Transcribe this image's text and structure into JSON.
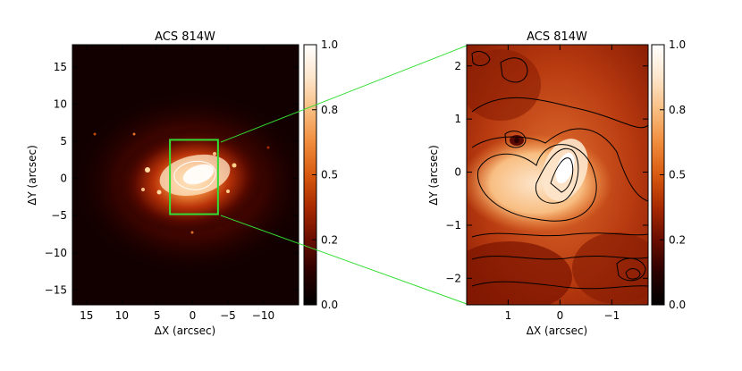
{
  "chart_data": [
    {
      "type": "heatmap",
      "title": "ACS 814W",
      "xlabel": "ΔX (arcsec)",
      "ylabel": "ΔY (arcsec)",
      "xlim": [
        17,
        -15
      ],
      "ylim": [
        -17,
        18
      ],
      "x_ticks": [
        15,
        10,
        5,
        0,
        -5,
        -10
      ],
      "x_tick_labels": [
        "15",
        "10",
        "5",
        "0",
        "−5",
        "−10"
      ],
      "y_ticks": [
        -15,
        -10,
        -5,
        0,
        5,
        10,
        15
      ],
      "y_tick_labels": [
        "−15",
        "−10",
        "−5",
        "0",
        "5",
        "10",
        "15"
      ],
      "colorbar": {
        "range": [
          0.0,
          1.0
        ],
        "ticks": [
          0.0,
          0.25,
          0.5,
          0.75,
          1.0
        ],
        "tick_labels": [
          "0.0",
          "0.2",
          "0.5",
          "0.8",
          "1.0"
        ]
      },
      "zoom_box": {
        "x": [
          3.2,
          -3.6
        ],
        "y": [
          -4.8,
          5.2
        ]
      },
      "zoom_box_color": "#33dd33",
      "contours": "white emission core near center"
    },
    {
      "type": "heatmap",
      "title": "ACS 814W",
      "xlabel": "ΔX (arcsec)",
      "ylabel": "ΔY (arcsec)",
      "xlim": [
        1.8,
        -1.7
      ],
      "ylim": [
        -2.5,
        2.4
      ],
      "x_ticks": [
        1,
        0,
        -1
      ],
      "x_tick_labels": [
        "1",
        "0",
        "−1"
      ],
      "y_ticks": [
        -2,
        -1,
        0,
        1,
        2
      ],
      "y_tick_labels": [
        "−2",
        "−1",
        "0",
        "1",
        "2"
      ],
      "colorbar": {
        "range": [
          0.0,
          1.0
        ],
        "ticks": [
          0.0,
          0.25,
          0.5,
          0.75,
          1.0
        ],
        "tick_labels": [
          "0.0",
          "0.2",
          "0.5",
          "0.8",
          "1.0"
        ]
      },
      "contours": "black contour levels"
    }
  ],
  "connector_color": "#33dd33",
  "colormap": [
    "#000000",
    "#2a0000",
    "#6a0d00",
    "#a82a00",
    "#d85a10",
    "#f08c3c",
    "#f8be82",
    "#fde6cc",
    "#ffffff"
  ]
}
